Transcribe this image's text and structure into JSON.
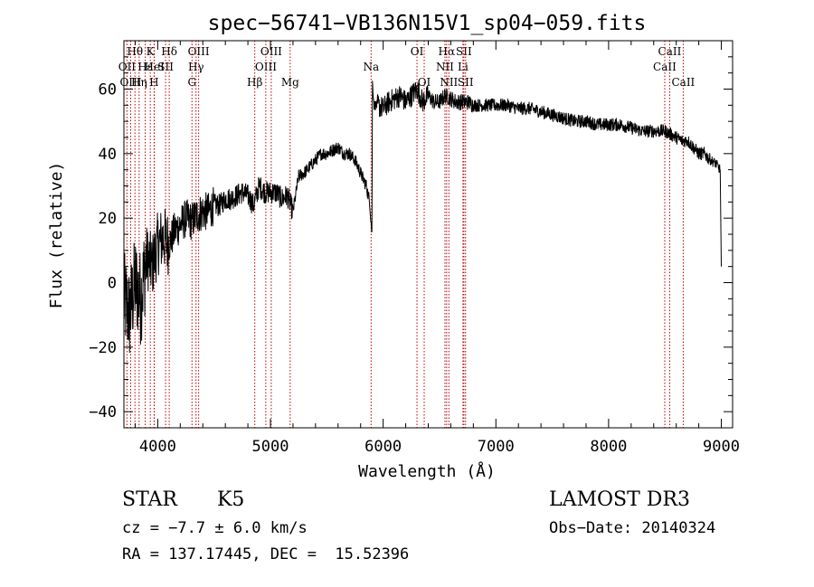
{
  "chart_data": {
    "type": "line",
    "title": "spec−56741−VB136N15V1_sp04−059.fits",
    "xlabel": "Wavelength (Å)",
    "ylabel": "Flux (relative)",
    "xlim": [
      3700,
      9100
    ],
    "ylim": [
      -45,
      75
    ],
    "xticks": [
      4000,
      5000,
      6000,
      7000,
      8000,
      9000
    ],
    "xtick_labels": [
      "4000",
      "5000",
      "6000",
      "7000",
      "8000",
      "9000"
    ],
    "yticks": [
      -40,
      -20,
      0,
      20,
      40,
      60
    ],
    "ytick_labels": [
      "−40",
      "−20",
      "0",
      "20",
      "40",
      "60"
    ],
    "series": [
      {
        "name": "flux",
        "x": [
          3700,
          3750,
          3800,
          3850,
          3900,
          3950,
          4000,
          4050,
          4100,
          4150,
          4200,
          4250,
          4300,
          4350,
          4400,
          4450,
          4500,
          4550,
          4600,
          4650,
          4700,
          4750,
          4800,
          4850,
          4900,
          4950,
          5000,
          5050,
          5100,
          5150,
          5200,
          5250,
          5300,
          5350,
          5400,
          5450,
          5500,
          5550,
          5600,
          5650,
          5700,
          5750,
          5800,
          5850,
          5880,
          5900,
          5905,
          5920,
          5950,
          6000,
          6050,
          6100,
          6150,
          6200,
          6250,
          6300,
          6350,
          6400,
          6450,
          6500,
          6550,
          6600,
          6650,
          6700,
          6750,
          6800,
          6850,
          6900,
          6950,
          7000,
          7100,
          7200,
          7300,
          7400,
          7500,
          7600,
          7700,
          7800,
          7900,
          8000,
          8100,
          8200,
          8300,
          8400,
          8500,
          8550,
          8600,
          8650,
          8700,
          8750,
          8800,
          8850,
          8900,
          8950,
          8990,
          9000
        ],
        "y": [
          -5,
          -10,
          0,
          -5,
          8,
          5,
          12,
          14,
          12,
          16,
          18,
          20,
          19,
          21,
          22,
          22,
          24,
          24,
          26,
          26,
          27,
          28,
          27,
          24,
          30,
          28,
          28,
          28,
          26,
          27,
          22,
          33,
          34,
          36,
          38,
          40,
          40,
          41,
          42,
          40,
          40,
          38,
          34,
          30,
          25,
          15,
          62,
          55,
          55,
          54,
          56,
          57,
          58,
          56,
          58,
          60,
          56,
          58,
          56,
          56,
          58,
          57,
          56,
          56,
          56,
          55,
          55,
          55,
          55,
          55,
          55,
          54,
          54,
          53,
          52,
          51,
          50,
          50,
          49,
          49,
          49,
          48,
          47,
          47,
          47,
          46,
          45,
          44,
          44,
          42,
          40,
          40,
          38,
          37,
          35,
          5
        ]
      }
    ],
    "line_markers": [
      {
        "label": "Hθ",
        "wavelength": 3798,
        "row": 0
      },
      {
        "label": "OII",
        "wavelength": 3727,
        "row": 1
      },
      {
        "label": "OIII",
        "wavelength": 3760,
        "row": 2
      },
      {
        "label": "Hε",
        "wavelength": 3889,
        "row": 1
      },
      {
        "label": "K",
        "wavelength": 3934,
        "row": 0
      },
      {
        "label": "HeI",
        "wavelength": 3970,
        "row": 1
      },
      {
        "label": "Hη",
        "wavelength": 3835,
        "row": 2
      },
      {
        "label": "H",
        "wavelength": 3968,
        "row": 2
      },
      {
        "label": "SII",
        "wavelength": 4070,
        "row": 1
      },
      {
        "label": "Hδ",
        "wavelength": 4102,
        "row": 0
      },
      {
        "label": "OIII",
        "wavelength": 4363,
        "row": 0
      },
      {
        "label": "Hγ",
        "wavelength": 4340,
        "row": 1
      },
      {
        "label": "G",
        "wavelength": 4304,
        "row": 2
      },
      {
        "label": "OIII",
        "wavelength": 5007,
        "row": 0
      },
      {
        "label": "OIII",
        "wavelength": 4959,
        "row": 1
      },
      {
        "label": "Hβ",
        "wavelength": 4861,
        "row": 2
      },
      {
        "label": "Mg",
        "wavelength": 5175,
        "row": 2
      },
      {
        "label": "Na",
        "wavelength": 5893,
        "row": 1
      },
      {
        "label": "OI",
        "wavelength": 6300,
        "row": 0
      },
      {
        "label": "OI",
        "wavelength": 6364,
        "row": 2
      },
      {
        "label": "Hα",
        "wavelength": 6563,
        "row": 0
      },
      {
        "label": "SII",
        "wavelength": 6716,
        "row": 0
      },
      {
        "label": "NII",
        "wavelength": 6548,
        "row": 1
      },
      {
        "label": "Li",
        "wavelength": 6708,
        "row": 1
      },
      {
        "label": "NII",
        "wavelength": 6583,
        "row": 2
      },
      {
        "label": "SII",
        "wavelength": 6731,
        "row": 2
      },
      {
        "label": "CaII",
        "wavelength": 8542,
        "row": 0
      },
      {
        "label": "CaII",
        "wavelength": 8498,
        "row": 1
      },
      {
        "label": "CaII",
        "wavelength": 8662,
        "row": 2
      }
    ]
  },
  "info": {
    "object_class": "STAR",
    "subclass": "K5",
    "redshift": "cz = −7.7 ± 6.0 km/s",
    "coords": "RA = 137.17445, DEC =  15.52396",
    "survey": "LAMOST DR3",
    "obs_date": "Obs−Date: 20140324"
  }
}
